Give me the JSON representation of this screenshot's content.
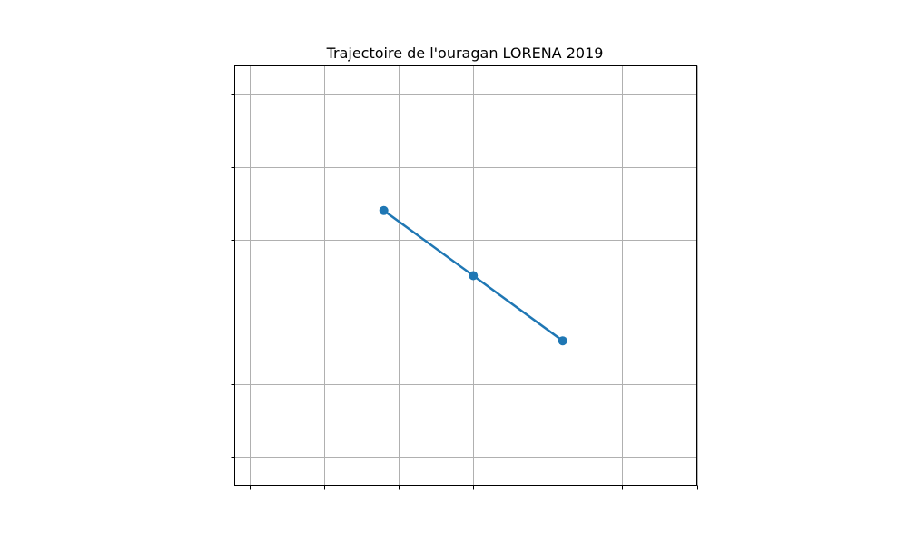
{
  "chart_data": {
    "type": "line",
    "title": "Trajectoire de l'ouragan LORENA 2019",
    "xlabel": "",
    "ylabel": "",
    "xlim": [
      0,
      6.2
    ],
    "ylim": [
      0,
      5.8
    ],
    "grid": true,
    "legend": "none",
    "x_grid": [
      0.2,
      1.2,
      2.2,
      3.2,
      4.2,
      5.2,
      6.2
    ],
    "y_grid": [
      0.4,
      1.4,
      2.4,
      3.4,
      4.4,
      5.4
    ],
    "series": [
      {
        "color": "#1f77b4",
        "x": [
          2.0,
          3.2,
          4.4
        ],
        "y": [
          3.8,
          2.9,
          2.0
        ]
      }
    ]
  }
}
